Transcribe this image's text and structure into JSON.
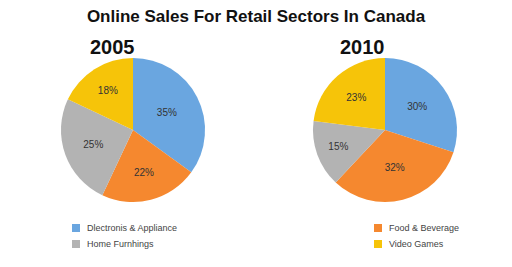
{
  "title": "Online Sales For Retail Sectors In Canada",
  "chart_data": [
    {
      "type": "pie",
      "title": "2005",
      "categories": [
        "Dlectronis & Appliance",
        "Food & Beverage",
        "Home Furnhings",
        "Video Games"
      ],
      "values": [
        35,
        22,
        25,
        18
      ],
      "value_labels": [
        "35%",
        "22%",
        "25%",
        "18%"
      ],
      "colors": [
        "#6aa6e0",
        "#f5882f",
        "#b3b3b3",
        "#f6c409"
      ],
      "data_labels": true,
      "legend": "bottom"
    },
    {
      "type": "pie",
      "title": "2010",
      "categories": [
        "Dlectronis & Appliance",
        "Food & Beverage",
        "Home Furnhings",
        "Video Games"
      ],
      "values": [
        30,
        32,
        15,
        23
      ],
      "value_labels": [
        "30%",
        "32%",
        "15%",
        "23%"
      ],
      "colors": [
        "#6aa6e0",
        "#f5882f",
        "#b3b3b3",
        "#f6c409"
      ],
      "data_labels": true,
      "legend": "bottom"
    }
  ]
}
